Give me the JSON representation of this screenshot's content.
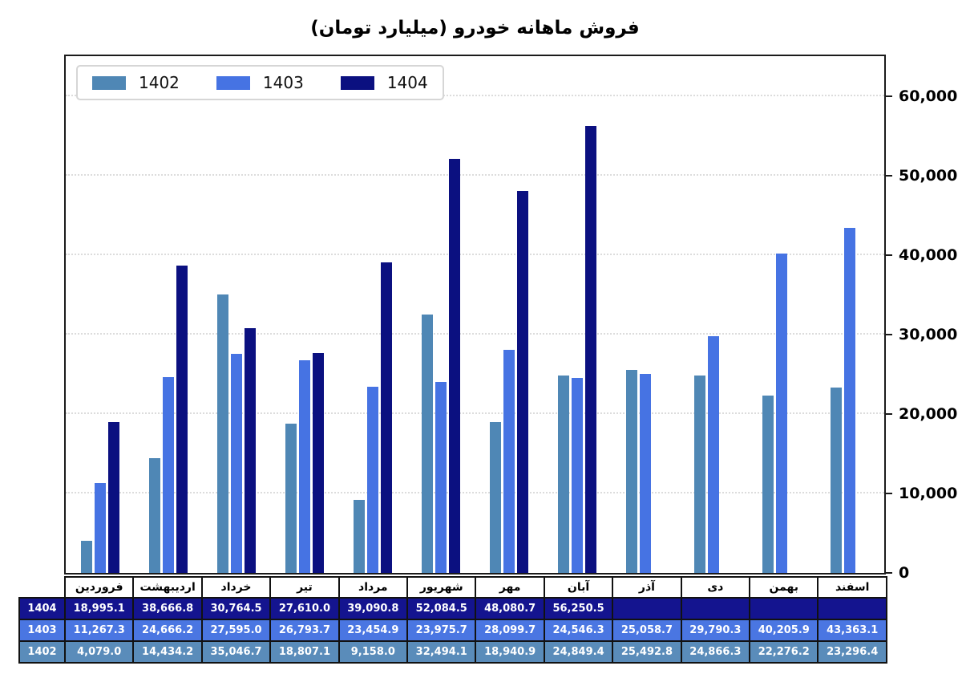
{
  "title": "فروش ماهانه خودرو (میلیارد تومان)",
  "legend": {
    "items": [
      {
        "label": "1402",
        "color": "#4f87b5"
      },
      {
        "label": "1403",
        "color": "#4673e3"
      },
      {
        "label": "1404",
        "color": "#0b1080"
      }
    ]
  },
  "y_axis": {
    "side": "right",
    "tick_labels": [
      "0",
      "10,000",
      "20,000",
      "30,000",
      "40,000",
      "50,000",
      "60,000"
    ],
    "tick_values": [
      0,
      10000,
      20000,
      30000,
      40000,
      50000,
      60000
    ],
    "max": 65000
  },
  "chart_data": {
    "type": "bar",
    "title": "فروش ماهانه خودرو (میلیارد تومان)",
    "categories": [
      "فروردین",
      "اردیبهشت",
      "خرداد",
      "تیر",
      "مرداد",
      "شهریور",
      "مهر",
      "آبان",
      "آذر",
      "دی",
      "بهمن",
      "اسفند"
    ],
    "series": [
      {
        "name": "1402",
        "color": "#4f87b5",
        "table_color": "#5a8cba",
        "values": [
          4079.0,
          14434.2,
          35046.7,
          18807.1,
          9158.0,
          32494.1,
          18940.9,
          24849.4,
          25492.8,
          24866.3,
          22276.2,
          23296.4
        ]
      },
      {
        "name": "1403",
        "color": "#4673e3",
        "table_color": "#4a76e2",
        "values": [
          11267.3,
          24666.2,
          27595.0,
          26793.7,
          23454.9,
          23975.7,
          28099.7,
          24546.3,
          25058.7,
          29790.3,
          40205.9,
          43363.1
        ]
      },
      {
        "name": "1404",
        "color": "#0b1080",
        "table_color": "#14148f",
        "values": [
          18995.1,
          38666.8,
          30764.5,
          27610.0,
          39090.8,
          52084.5,
          48080.7,
          56250.5,
          null,
          null,
          null,
          null
        ]
      }
    ],
    "ylim": [
      0,
      65000
    ],
    "grid": "horizontal-dotted",
    "legend_position": "top-left",
    "xlabel": "",
    "ylabel": ""
  },
  "table": {
    "row_order": [
      "1404",
      "1403",
      "1402"
    ],
    "rows": [
      {
        "label": "1404",
        "cells": [
          "18,995.1",
          "38,666.8",
          "30,764.5",
          "27,610.0",
          "39,090.8",
          "52,084.5",
          "48,080.7",
          "56,250.5",
          "",
          "",
          "",
          ""
        ]
      },
      {
        "label": "1403",
        "cells": [
          "11,267.3",
          "24,666.2",
          "27,595.0",
          "26,793.7",
          "23,454.9",
          "23,975.7",
          "28,099.7",
          "24,546.3",
          "25,058.7",
          "29,790.3",
          "40,205.9",
          "43,363.1"
        ]
      },
      {
        "label": "1402",
        "cells": [
          "4,079.0",
          "14,434.2",
          "35,046.7",
          "18,807.1",
          "9,158.0",
          "32,494.1",
          "18,940.9",
          "24,849.4",
          "25,492.8",
          "24,866.3",
          "22,276.2",
          "23,296.4"
        ]
      }
    ]
  }
}
